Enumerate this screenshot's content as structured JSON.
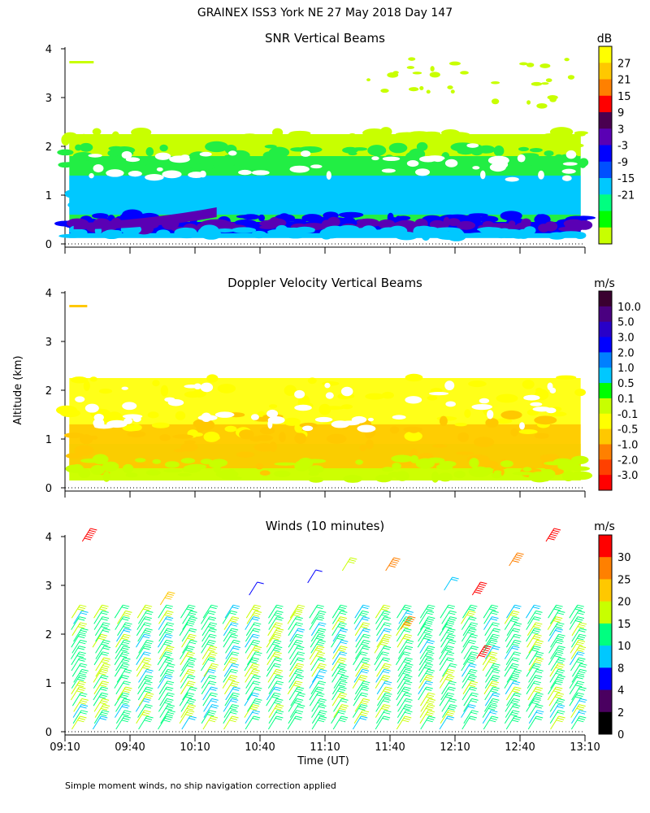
{
  "title": "GRAINEX ISS3 York NE  27 May 2018 Day 147",
  "ylabel": "Altitude (km)",
  "xlabel": "Time (UT)",
  "footnote": "Simple moment winds, no ship navigation correction applied",
  "chart_data": [
    {
      "type": "heatmap",
      "title": "SNR Vertical Beams",
      "units": "dB",
      "xlim": [
        0,
        240
      ],
      "ylim": [
        0,
        4
      ],
      "y_ticks": [
        0,
        1,
        2,
        3,
        4
      ],
      "x_ticks": [
        "09:10",
        "09:40",
        "10:10",
        "10:40",
        "11:10",
        "11:40",
        "12:10",
        "12:40",
        "13:10"
      ],
      "colorbar": {
        "labels": [
          "27",
          "21",
          "15",
          "9",
          "3",
          "-3",
          "-9",
          "-15",
          "-21"
        ],
        "colors": [
          "#ffff00",
          "#ffc800",
          "#ff8000",
          "#ff0000",
          "#4a0050",
          "#5a00b4",
          "#0000ff",
          "#0050ff",
          "#00c8ff",
          "#00ff80",
          "#00ff00",
          "#c8ff00"
        ]
      },
      "color_bands": [
        {
          "name": "weak echo (-21 dB)",
          "color": "#c8ff00",
          "y": [
            1.9,
            2.3
          ]
        },
        {
          "name": "green (-15 dB)",
          "color": "#22ee44",
          "y": [
            1.5,
            2.0
          ]
        },
        {
          "name": "cyan (-9 dB)",
          "color": "#00c8ff",
          "y": [
            0.7,
            1.3
          ]
        },
        {
          "name": "blue (-3 dB)",
          "color": "#0000ff",
          "y": [
            0.35,
            0.6
          ]
        },
        {
          "name": "purple (3 dB)",
          "color": "#5a00b4",
          "y": [
            0.3,
            0.45
          ]
        },
        {
          "name": "sky (-9 dB)",
          "color": "#00c8ff",
          "y": [
            0.15,
            0.3
          ]
        }
      ]
    },
    {
      "type": "heatmap",
      "title": "Doppler Velocity Vertical Beams",
      "units": "m/s",
      "xlim": [
        0,
        240
      ],
      "ylim": [
        0,
        4
      ],
      "y_ticks": [
        0,
        1,
        2,
        3,
        4
      ],
      "colorbar": {
        "labels": [
          "10.0",
          "5.0",
          "3.0",
          "2.0",
          "1.0",
          "0.5",
          "0.1",
          "-0.1",
          "-0.5",
          "-1.0",
          "-2.0",
          "-3.0"
        ],
        "colors": [
          "#3a0030",
          "#4a0080",
          "#2800c8",
          "#0000ff",
          "#0080ff",
          "#00c8ff",
          "#00ff00",
          "#c8ff00",
          "#ffff00",
          "#ffc800",
          "#ff8000",
          "#ff4000",
          "#ff0000"
        ]
      },
      "color_bands": [
        {
          "name": "yellow (-0.1 m/s)",
          "color": "#ffff00",
          "y": [
            1.0,
            2.3
          ]
        },
        {
          "name": "orange (-0.5 m/s)",
          "color": "#ffc800",
          "y": [
            0.3,
            1.5
          ]
        },
        {
          "name": "lime (0.1 m/s)",
          "color": "#c8ff00",
          "y": [
            0.15,
            0.6
          ]
        }
      ]
    },
    {
      "type": "wind-barbs",
      "title": "Winds (10 minutes)",
      "units": "m/s",
      "xlim": [
        0,
        240
      ],
      "ylim": [
        0,
        4
      ],
      "y_ticks": [
        0,
        1,
        2,
        3,
        4
      ],
      "x_ticks": [
        "09:10",
        "09:40",
        "10:10",
        "10:40",
        "11:10",
        "11:40",
        "12:10",
        "12:40",
        "13:10"
      ],
      "colorbar": {
        "labels": [
          "30",
          "25",
          "20",
          "15",
          "10",
          "8",
          "4",
          "2",
          "0"
        ],
        "colors": [
          "#ff0000",
          "#ff8000",
          "#ffc800",
          "#c8ff00",
          "#00ff80",
          "#00c8ff",
          "#0000ff",
          "#4a0060",
          "#000000"
        ]
      },
      "profile_times_min": [
        5,
        15,
        25,
        35,
        45,
        55,
        65,
        75,
        85,
        95,
        105,
        115,
        125,
        135,
        145,
        155,
        165,
        175,
        185,
        195,
        205,
        215,
        225,
        235
      ],
      "max_altitude_km": 2.45,
      "typical_speed_ms": "10-15",
      "upper_barbs": [
        {
          "t": 8,
          "alt": 3.9,
          "speed": 30
        },
        {
          "t": 44,
          "alt": 2.6,
          "speed": 20
        },
        {
          "t": 85,
          "alt": 2.8,
          "speed": 4
        },
        {
          "t": 112,
          "alt": 3.05,
          "speed": 4
        },
        {
          "t": 128,
          "alt": 3.3,
          "speed": 15
        },
        {
          "t": 148,
          "alt": 3.3,
          "speed": 25
        },
        {
          "t": 155,
          "alt": 2.1,
          "speed": 25
        },
        {
          "t": 175,
          "alt": 2.9,
          "speed": 8
        },
        {
          "t": 188,
          "alt": 2.8,
          "speed": 30
        },
        {
          "t": 205,
          "alt": 3.4,
          "speed": 25
        },
        {
          "t": 222,
          "alt": 3.9,
          "speed": 30
        },
        {
          "t": 190,
          "alt": 1.5,
          "speed": 30
        }
      ]
    }
  ]
}
